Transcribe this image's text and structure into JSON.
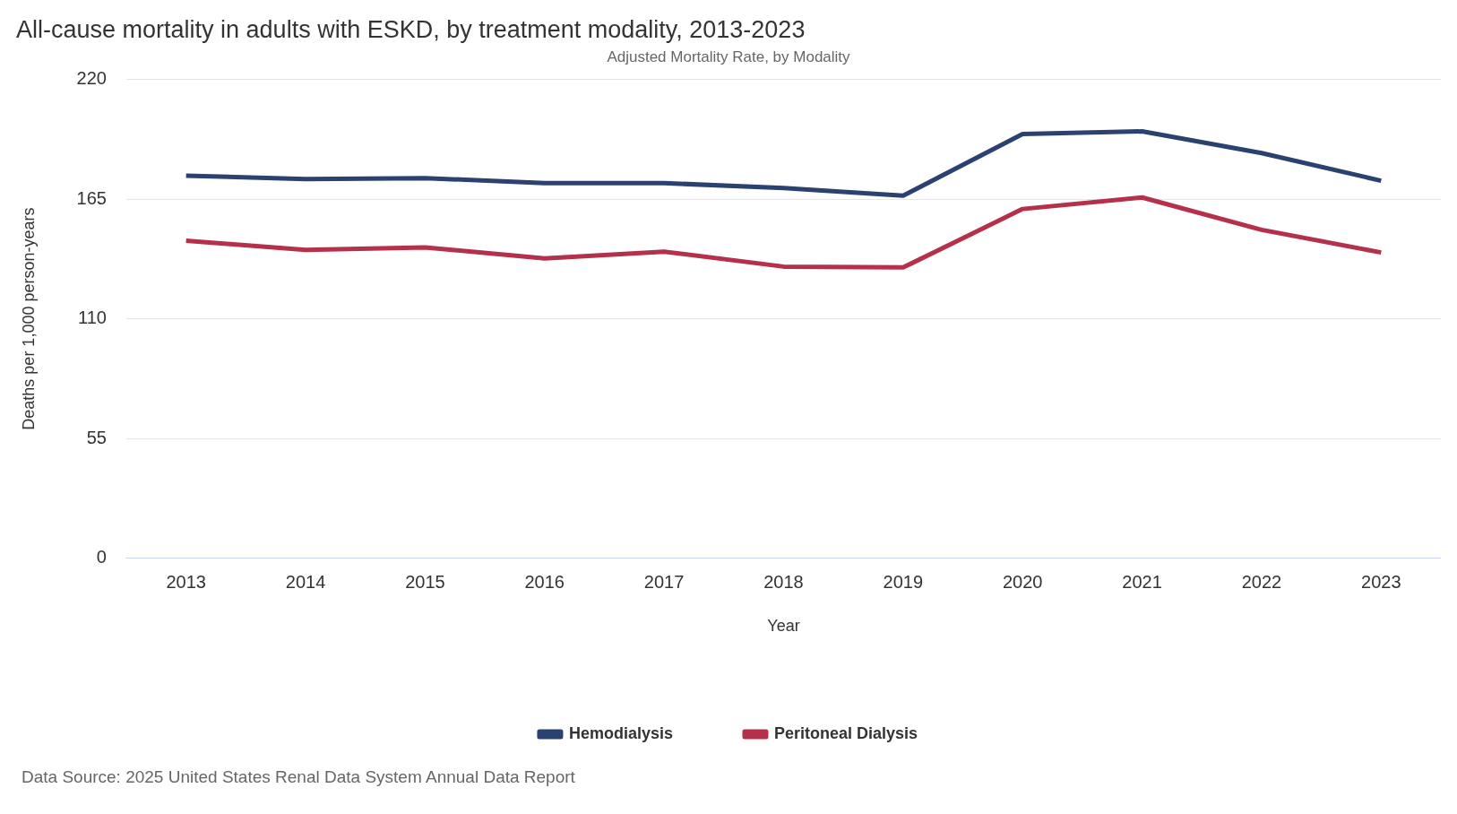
{
  "chart_data": {
    "type": "line",
    "title": "All-cause mortality in adults with ESKD, by treatment modality, 2013-2023",
    "subtitle": "Adjusted Mortality Rate, by Modality",
    "xlabel": "Year",
    "ylabel": "Deaths per 1,000 person-years",
    "categories": [
      "2013",
      "2014",
      "2015",
      "2016",
      "2017",
      "2018",
      "2019",
      "2020",
      "2021",
      "2022",
      "2023"
    ],
    "series": [
      {
        "name": "Hemodialysis",
        "color": "#2b4170",
        "values": [
          175.8,
          174.3,
          174.7,
          172.4,
          172.4,
          170.1,
          166.6,
          195.0,
          196.2,
          186.2,
          173.5
        ]
      },
      {
        "name": "Peritoneal Dialysis",
        "color": "#b5304a",
        "values": [
          145.9,
          141.7,
          142.8,
          137.8,
          140.9,
          134.0,
          133.6,
          160.5,
          165.8,
          150.9,
          140.5
        ]
      }
    ],
    "ylim": [
      0,
      220
    ],
    "yticks": [
      0,
      55,
      110,
      165,
      220
    ],
    "grid": "y",
    "legend": "bottom",
    "marker": "none",
    "line_style": "solid",
    "annotations": [
      "Data Source: 2025 United States Renal Data System Annual Data Report"
    ]
  }
}
